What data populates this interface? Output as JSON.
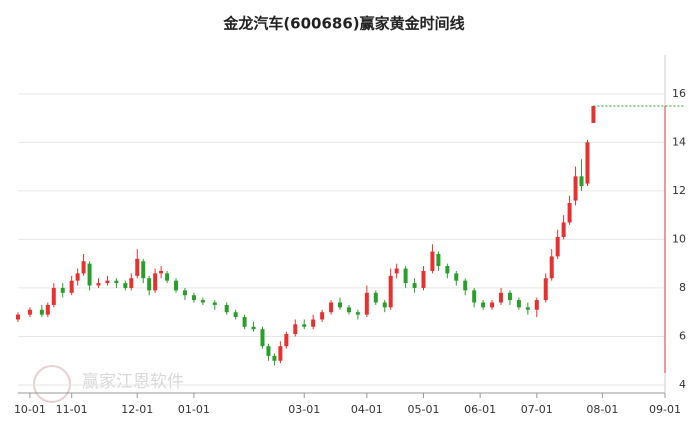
{
  "chart_data": {
    "type": "candlestick",
    "title": "金龙汽车(600686)赢家黄金时间线",
    "watermark": "赢家江恩软件",
    "up_color": "#e8312f",
    "down_color": "#2a9e2a",
    "grid": true,
    "xlim": [
      0,
      217
    ],
    "xticks": [
      {
        "value": 4,
        "label": "10-01"
      },
      {
        "value": 18,
        "label": "11-01"
      },
      {
        "value": 40,
        "label": "12-01"
      },
      {
        "value": 59,
        "label": "01-01"
      },
      {
        "value": 96,
        "label": "03-01"
      },
      {
        "value": 117,
        "label": "04-01"
      },
      {
        "value": 136,
        "label": "05-01"
      },
      {
        "value": 155,
        "label": "06-01"
      },
      {
        "value": 174,
        "label": "07-01"
      },
      {
        "value": 196,
        "label": "08-01"
      },
      {
        "value": 217,
        "label": "09-01"
      }
    ],
    "ylim": [
      3.67,
      17.6
    ],
    "yticks": [
      4,
      6,
      8,
      10,
      12,
      14,
      16
    ],
    "x": [
      0,
      4,
      8,
      10,
      12,
      15,
      18,
      20,
      22,
      24,
      27,
      30,
      33,
      36,
      38,
      40,
      42,
      44,
      46,
      48,
      50,
      53,
      56,
      59,
      62,
      66,
      70,
      73,
      76,
      79,
      82,
      84,
      86,
      88,
      90,
      93,
      96,
      99,
      102,
      105,
      108,
      111,
      114,
      117,
      120,
      123,
      125,
      127,
      130,
      133,
      136,
      139,
      141,
      144,
      147,
      150,
      153,
      156,
      159,
      162,
      165,
      168,
      171,
      174,
      177,
      179,
      181,
      183,
      185,
      187,
      189,
      191,
      193
    ],
    "open": [
      6.7,
      6.9,
      7.1,
      6.9,
      7.3,
      8.0,
      7.8,
      8.3,
      8.6,
      9.0,
      8.1,
      8.2,
      8.3,
      8.2,
      8.0,
      8.5,
      9.1,
      8.4,
      7.9,
      8.6,
      8.6,
      8.3,
      7.9,
      7.7,
      7.5,
      7.4,
      7.3,
      7.0,
      6.8,
      6.4,
      6.3,
      5.6,
      5.2,
      5.0,
      5.6,
      6.1,
      6.5,
      6.4,
      6.7,
      7.0,
      7.4,
      7.2,
      7.0,
      6.9,
      7.8,
      7.4,
      7.2,
      8.6,
      8.8,
      8.2,
      8.0,
      8.7,
      9.4,
      8.9,
      8.6,
      8.3,
      7.9,
      7.4,
      7.2,
      7.4,
      7.8,
      7.5,
      7.2,
      7.1,
      7.5,
      8.4,
      9.3,
      10.1,
      10.7,
      11.6,
      12.6,
      12.3,
      14.8
    ],
    "close": [
      6.9,
      7.1,
      6.9,
      7.3,
      8.0,
      7.8,
      8.3,
      8.6,
      9.1,
      8.1,
      8.2,
      8.3,
      8.2,
      8.0,
      8.4,
      9.2,
      8.4,
      7.9,
      8.6,
      8.7,
      8.3,
      7.9,
      7.7,
      7.5,
      7.4,
      7.3,
      7.0,
      6.8,
      6.4,
      6.3,
      5.6,
      5.2,
      5.0,
      5.6,
      6.1,
      6.5,
      6.4,
      6.7,
      7.0,
      7.4,
      7.2,
      7.0,
      6.9,
      7.8,
      7.4,
      7.2,
      8.5,
      8.8,
      8.2,
      8.0,
      8.7,
      9.5,
      8.9,
      8.6,
      8.3,
      7.9,
      7.4,
      7.2,
      7.4,
      7.8,
      7.5,
      7.2,
      7.1,
      7.5,
      8.4,
      9.3,
      10.1,
      10.7,
      11.5,
      12.6,
      12.2,
      14.0,
      15.5
    ],
    "high": [
      7.0,
      7.2,
      7.3,
      7.4,
      8.2,
      8.2,
      8.5,
      8.8,
      9.4,
      9.1,
      8.4,
      8.5,
      8.4,
      8.3,
      8.6,
      9.6,
      9.2,
      8.5,
      8.8,
      8.9,
      8.7,
      8.4,
      8.0,
      7.8,
      7.6,
      7.5,
      7.4,
      7.1,
      6.9,
      6.6,
      6.4,
      5.7,
      5.3,
      5.8,
      6.2,
      6.7,
      6.7,
      6.9,
      7.1,
      7.5,
      7.6,
      7.3,
      7.1,
      8.1,
      7.9,
      7.5,
      8.8,
      9.0,
      8.9,
      8.4,
      8.9,
      9.8,
      9.5,
      9.0,
      8.7,
      8.4,
      8.0,
      7.5,
      7.5,
      8.0,
      7.9,
      7.6,
      7.4,
      7.6,
      8.6,
      9.6,
      10.4,
      11.0,
      11.8,
      13.0,
      13.3,
      14.1,
      15.5
    ],
    "low": [
      6.6,
      6.8,
      6.8,
      6.8,
      7.2,
      7.6,
      7.7,
      8.1,
      8.5,
      7.9,
      8.0,
      8.1,
      8.0,
      7.9,
      7.9,
      8.4,
      8.2,
      7.7,
      7.8,
      8.4,
      8.2,
      7.8,
      7.5,
      7.4,
      7.3,
      7.1,
      6.9,
      6.7,
      6.3,
      6.2,
      5.5,
      5.0,
      4.8,
      4.9,
      5.5,
      6.0,
      6.3,
      6.3,
      6.6,
      6.9,
      7.1,
      6.9,
      6.7,
      6.8,
      7.3,
      7.0,
      7.1,
      8.4,
      8.0,
      7.8,
      7.9,
      8.6,
      8.7,
      8.4,
      8.1,
      7.7,
      7.2,
      7.1,
      7.1,
      7.3,
      7.3,
      7.1,
      6.9,
      6.8,
      7.4,
      8.3,
      9.2,
      10.0,
      10.6,
      11.4,
      12.0,
      12.2,
      14.8
    ]
  }
}
